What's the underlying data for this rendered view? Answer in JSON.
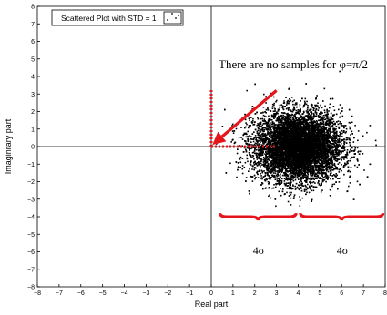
{
  "chart_data": {
    "type": "scatter",
    "title": "",
    "xlabel": "Real part",
    "ylabel": "Imaginrary part",
    "xlim": [
      -8,
      8
    ],
    "ylim": [
      -8,
      8
    ],
    "xticks": [
      "−8",
      "−7",
      "−6",
      "−5",
      "−4",
      "−3",
      "−2",
      "−1",
      "0",
      "1",
      "2",
      "3",
      "4",
      "5",
      "6",
      "7",
      "8"
    ],
    "yticks": [
      "8",
      "7",
      "6",
      "5",
      "4",
      "3",
      "2",
      "1",
      "0",
      "−1",
      "−2",
      "−3",
      "−4",
      "−5",
      "−6",
      "−7",
      "−8"
    ],
    "grid": false,
    "legend": {
      "position": "top-left",
      "entries": [
        {
          "name": "Scattered Plot with STD = 1",
          "marker": "dots"
        }
      ]
    },
    "series": [
      {
        "name": "Scattered Plot with STD = 1",
        "distribution": "gaussian",
        "mean": [
          4,
          0
        ],
        "std": 1,
        "color": "#000000"
      }
    ],
    "annotations": {
      "no_samples_text": "There are no samples for  φ=π/2",
      "sigma_label_left": "4σ",
      "sigma_label_right": "4σ",
      "arrow_color": "#e4161c",
      "dotted_color": "#e4161c",
      "brace_color": "#e4161c",
      "arrow_from": [
        3.0,
        3.2
      ],
      "arrow_to": [
        0.05,
        0.1
      ],
      "dotted_vertical": {
        "x": 0,
        "y_from": 0,
        "y_to": 3.3
      },
      "dotted_horizontal": {
        "y": 0,
        "x_from": 0,
        "x_to": 3.0
      },
      "braces": [
        {
          "x_from": 0.4,
          "x_to": 3.9,
          "y": -3.8
        },
        {
          "x_from": 4.1,
          "x_to": 7.9,
          "y": -3.8
        }
      ],
      "dashed_sigma": {
        "y": -5.85,
        "left": [
          0,
          4
        ],
        "right": [
          4,
          8
        ]
      }
    }
  }
}
